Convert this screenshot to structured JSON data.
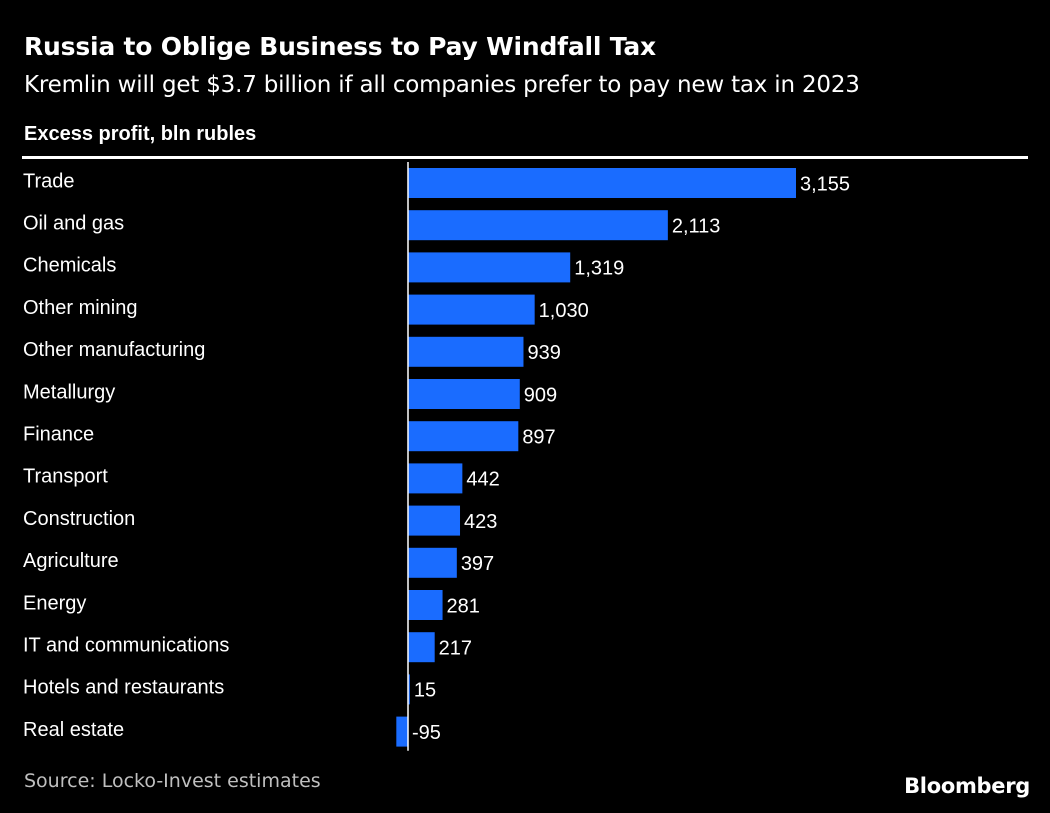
{
  "title": "Russia to Oblige Business to Pay Windfall Tax",
  "subtitle": "Kremlin will get $3.7 billion if all companies prefer to pay new tax in 2023",
  "source": "Source: Locko-Invest estimates",
  "brand": "Bloomberg",
  "colors": {
    "bar": "#1a6cff",
    "background": "#000000",
    "text": "#ffffff"
  },
  "chart_data": {
    "type": "bar",
    "orientation": "horizontal",
    "title": "Russia to Oblige Business to Pay Windfall Tax",
    "ylabel": "Excess profit, bln rubles",
    "categories": [
      "Trade",
      "Oil and gas",
      "Chemicals",
      "Other mining",
      "Other manufacturing",
      "Metallurgy",
      "Finance",
      "Transport",
      "Construction",
      "Agriculture",
      "Energy",
      "IT and communications",
      "Hotels and restaurants",
      "Real estate"
    ],
    "values": [
      3155,
      2113,
      1319,
      1030,
      939,
      909,
      897,
      442,
      423,
      397,
      281,
      217,
      15,
      -95
    ],
    "labels": [
      "3,155",
      "2,113",
      "1,319",
      "1,030",
      "939",
      "909",
      "897",
      "442",
      "423",
      "397",
      "281",
      "217",
      "15",
      "-95"
    ],
    "xlim": [
      -95,
      3155
    ],
    "grid": false,
    "legend": "none"
  }
}
